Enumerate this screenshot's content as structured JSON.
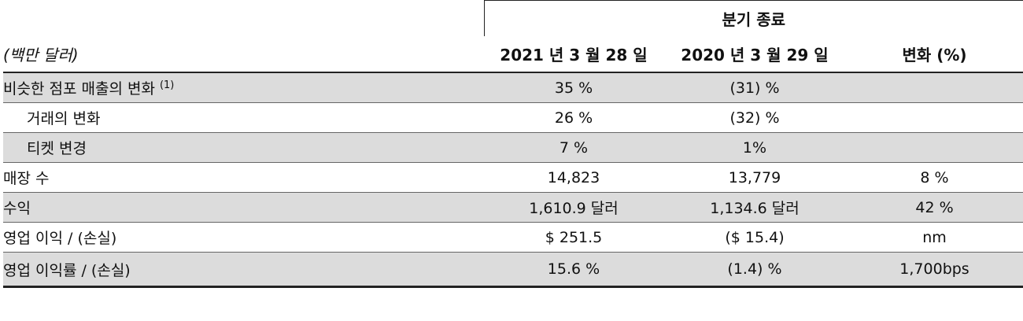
{
  "table": {
    "group_header": "분기 종료",
    "units_label": "(백만 달러)",
    "columns": [
      "2021 년 3 월 28 일",
      "2020 년 3 월 29 일",
      "변화 (%)"
    ],
    "rows": [
      {
        "label": "비슷한 점포 매출의 변화",
        "footnote": "(1)",
        "values": [
          "35 %",
          "(31) %",
          ""
        ]
      },
      {
        "label": "거래의 변화",
        "footnote": "",
        "values": [
          "26 %",
          "(32) %",
          ""
        ]
      },
      {
        "label": "티켓 변경",
        "footnote": "",
        "values": [
          "7 %",
          "1%",
          ""
        ]
      },
      {
        "label": "매장 수",
        "footnote": "",
        "values": [
          "14,823",
          "13,779",
          "8 %"
        ]
      },
      {
        "label": "수익",
        "footnote": "",
        "values": [
          "1,610.9 달러",
          "1,134.6 달러",
          "42 %"
        ]
      },
      {
        "label": "영업 이익 / (손실)",
        "footnote": "",
        "values": [
          "$ 251.5",
          "($ 15.4)",
          "nm"
        ]
      },
      {
        "label": "영업 이익률 / (손실)",
        "footnote": "",
        "values": [
          "15.6 %",
          "(1.4) %",
          "1,700bps"
        ]
      }
    ]
  }
}
